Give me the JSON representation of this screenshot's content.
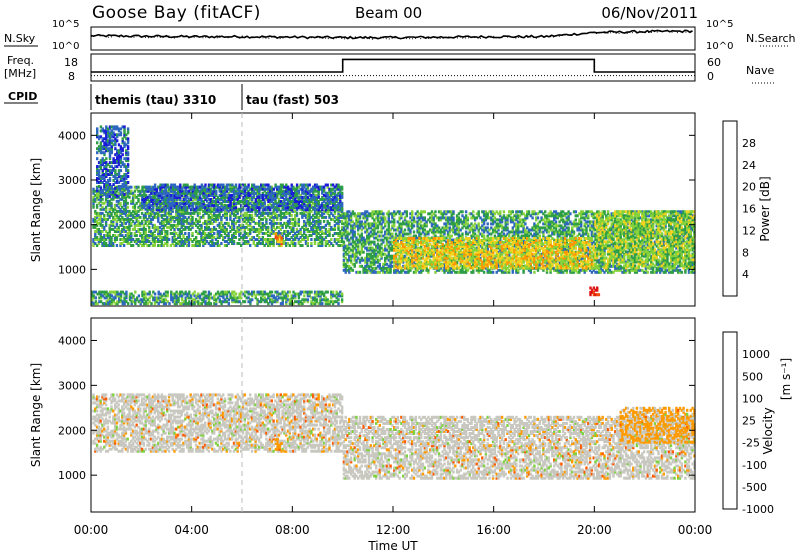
{
  "header": {
    "site": "Goose Bay (fitACF)",
    "beam": "Beam 00",
    "date": "06/Nov/2011"
  },
  "noise_panel": {
    "left_label": "N.Sky",
    "right_label": "N.Search",
    "left_ticks": [
      "10^5",
      "10^0"
    ],
    "right_ticks": [
      "10^5",
      "10^0"
    ],
    "series": [
      {
        "name": "N.Sky",
        "style": "solid",
        "x": [
          0,
          2,
          4,
          6,
          8,
          10,
          12,
          14,
          16,
          18,
          20,
          22,
          24
        ],
        "y_log10": [
          3.1,
          3.0,
          2.9,
          2.9,
          2.8,
          2.7,
          2.7,
          2.8,
          2.9,
          2.9,
          3.8,
          4.0,
          4.1
        ]
      },
      {
        "name": "N.Search",
        "style": "dotted",
        "x": [
          0,
          2,
          4,
          6,
          8,
          10,
          12,
          14,
          16,
          18,
          20,
          22,
          24
        ],
        "y_log10": [
          3.0,
          2.9,
          2.8,
          2.8,
          2.7,
          2.6,
          2.6,
          2.7,
          2.8,
          2.8,
          3.7,
          3.9,
          4.0
        ]
      }
    ]
  },
  "freq_panel": {
    "left_label_top": "Freq.",
    "left_label_bottom": "[MHz]",
    "right_label": "Nave",
    "left_ticks": [
      "18",
      "8"
    ],
    "right_ticks": [
      "60",
      "0"
    ],
    "series": [
      {
        "name": "Freq.",
        "style": "solid",
        "x": [
          0,
          10,
          10,
          20,
          20,
          24
        ],
        "y": [
          10,
          10,
          17,
          17,
          10,
          10
        ]
      },
      {
        "name": "Nave",
        "style": "dotted",
        "x": [
          0,
          24
        ],
        "y": [
          8,
          8
        ]
      }
    ]
  },
  "cpid": {
    "label": "CPID",
    "entries": [
      {
        "text": "themis (tau) 3310",
        "start": 0
      },
      {
        "text": "tau (fast) 503",
        "start": 6
      }
    ]
  },
  "x_axis": {
    "label": "Time UT",
    "ticks": [
      0,
      4,
      8,
      12,
      16,
      20,
      24
    ],
    "tick_labels": [
      "00:00",
      "04:00",
      "08:00",
      "12:00",
      "16:00",
      "20:00",
      "00:00"
    ],
    "range": [
      0,
      24
    ]
  },
  "chart_data": [
    {
      "type": "heatmap",
      "name": "power",
      "ylabel": "Slant Range [km]",
      "ylim": [
        180,
        4500
      ],
      "yticks": [
        1000,
        2000,
        3000,
        4000
      ],
      "xlim": [
        0,
        24
      ],
      "colorbar": {
        "label": "Power [dB]",
        "ticks": [
          "28",
          "24",
          "20",
          "16",
          "12",
          "8",
          "4"
        ],
        "colors": [
          "#dd1111",
          "#f04a0a",
          "#ff9600",
          "#f2d21e",
          "#85d23a",
          "#2e9e46",
          "#2d67bf",
          "#1a1ad8"
        ]
      },
      "regions": [
        {
          "x": [
            0.05,
            10
          ],
          "y": [
            1500,
            2850
          ],
          "level": 2
        },
        {
          "x": [
            2,
            10
          ],
          "y": [
            2300,
            2900
          ],
          "level": 1
        },
        {
          "x": [
            0.2,
            1.5
          ],
          "y": [
            2600,
            4200
          ],
          "level": 1
        },
        {
          "x": [
            0,
            10
          ],
          "y": [
            200,
            500
          ],
          "level": 2
        },
        {
          "x": [
            10,
            24
          ],
          "y": [
            900,
            2300
          ],
          "level": 2
        },
        {
          "x": [
            12,
            20
          ],
          "y": [
            1000,
            1700
          ],
          "level": 4
        },
        {
          "x": [
            20,
            24
          ],
          "y": [
            1000,
            2300
          ],
          "level": 3
        },
        {
          "x": [
            7.3,
            7.6
          ],
          "y": [
            1500,
            1800
          ],
          "level": 5
        },
        {
          "x": [
            19.8,
            20.2
          ],
          "y": [
            400,
            600
          ],
          "level": 7
        }
      ]
    },
    {
      "type": "heatmap",
      "name": "velocity",
      "ylabel": "Slant Range [km]",
      "ylim": [
        180,
        4500
      ],
      "yticks": [
        1000,
        2000,
        3000,
        4000
      ],
      "xlim": [
        0,
        24
      ],
      "colorbar": {
        "label": "Velocity",
        "units": "[m s⁻¹]",
        "ticks": [
          "1000",
          "500",
          "100",
          "25",
          "-25",
          "-100",
          "-500",
          "-1000"
        ],
        "colors": [
          "#1e3ec8",
          "#2e7fb3",
          "#2f9b4f",
          "#7fd23f",
          "#c8c8c0",
          "#ff9a00",
          "#ff5a00",
          "#ee1a10"
        ]
      },
      "regions": [
        {
          "x": [
            0.05,
            10
          ],
          "y": [
            1500,
            2800
          ],
          "level": 4
        },
        {
          "x": [
            10,
            24
          ],
          "y": [
            900,
            2300
          ],
          "level": 4
        },
        {
          "x": [
            21,
            24
          ],
          "y": [
            1700,
            2500
          ],
          "level": 5
        },
        {
          "x": [
            7.3,
            7.6
          ],
          "y": [
            1500,
            1800
          ],
          "level": 5
        }
      ]
    }
  ]
}
